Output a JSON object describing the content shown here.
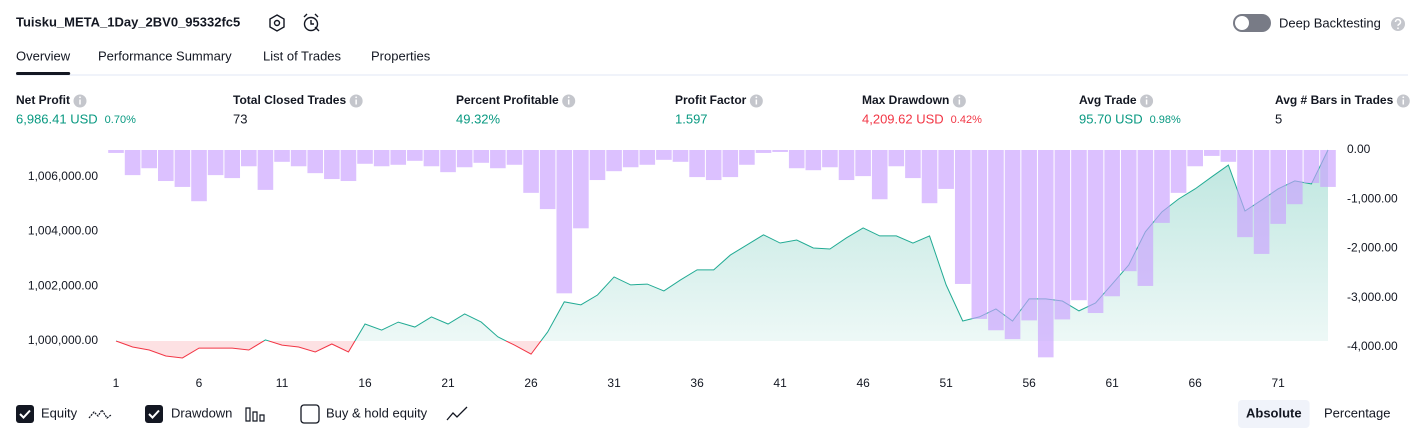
{
  "header": {
    "title": "Tuisku_META_1Day_2BV0_95332fc5",
    "toggle_label": "Deep Backtesting",
    "toggle_on": false
  },
  "tabs": {
    "items": [
      "Overview",
      "Performance Summary",
      "List of Trades",
      "Properties"
    ],
    "active": 0
  },
  "metrics": [
    {
      "label": "Net Profit",
      "value": "6,986.41 USD",
      "percent": "0.70%",
      "color": "#089981"
    },
    {
      "label": "Total Closed Trades",
      "value": "73",
      "color": "#131722"
    },
    {
      "label": "Percent Profitable",
      "value": "49.32%",
      "color": "#089981"
    },
    {
      "label": "Profit Factor",
      "value": "1.597",
      "color": "#089981"
    },
    {
      "label": "Max Drawdown",
      "value": "4,209.62 USD",
      "percent": "0.42%",
      "color": "#f23645"
    },
    {
      "label": "Avg Trade",
      "value": "95.70 USD",
      "percent": "0.98%",
      "color": "#089981"
    },
    {
      "label": "Avg # Bars in Trades",
      "value": "5",
      "color": "#131722"
    }
  ],
  "chart_data": {
    "type": "line",
    "x": [
      1,
      2,
      3,
      4,
      5,
      6,
      7,
      8,
      9,
      10,
      11,
      12,
      13,
      14,
      15,
      16,
      17,
      18,
      19,
      20,
      21,
      22,
      23,
      24,
      25,
      26,
      27,
      28,
      29,
      30,
      31,
      32,
      33,
      34,
      35,
      36,
      37,
      38,
      39,
      40,
      41,
      42,
      43,
      44,
      45,
      46,
      47,
      48,
      49,
      50,
      51,
      52,
      53,
      54,
      55,
      56,
      57,
      58,
      59,
      60,
      61,
      62,
      63,
      64,
      65,
      66,
      67,
      68,
      69,
      70,
      71,
      72,
      73,
      74
    ],
    "xlim": [
      1,
      74
    ],
    "xticks": [
      1,
      6,
      11,
      16,
      21,
      26,
      31,
      36,
      41,
      46,
      51,
      56,
      61,
      66,
      71
    ],
    "ylim": [
      999780,
      1006980
    ],
    "yticks": [
      {
        "value": 1000000,
        "label": "1,000,000.00"
      },
      {
        "value": 1002000,
        "label": "1,002,000.00"
      },
      {
        "value": 1004000,
        "label": "1,004,000.00"
      },
      {
        "value": 1006000,
        "label": "1,006,000.00"
      }
    ],
    "y2lim": [
      -4000,
      0
    ],
    "y2ticks": [
      {
        "value": 0,
        "label": "0.00"
      },
      {
        "value": -1000,
        "label": "-1,000.00"
      },
      {
        "value": -2000,
        "label": "-2,000.00"
      },
      {
        "value": -3000,
        "label": "-3,000.00"
      },
      {
        "value": -4000,
        "label": "-4,000.00"
      }
    ],
    "series": [
      {
        "name": "Equity",
        "type": "line",
        "color": "#22ab94",
        "negative_color": "#f23645",
        "checked": true,
        "values": [
          1000000,
          999780,
          999670,
          999450,
          999380,
          999740,
          999740,
          999740,
          999670,
          1000040,
          999850,
          999780,
          999600,
          999890,
          999600,
          1000620,
          1000400,
          1000690,
          1000510,
          1000880,
          1000620,
          1000990,
          1000690,
          1000150,
          999850,
          999520,
          1000330,
          1001430,
          1001320,
          1001680,
          1002340,
          1002050,
          1002080,
          1001830,
          1002230,
          1002600,
          1002600,
          1003140,
          1003510,
          1003880,
          1003580,
          1003690,
          1003400,
          1003360,
          1003770,
          1004130,
          1003840,
          1003840,
          1003580,
          1003840,
          1002050,
          1000730,
          1000880,
          1001170,
          1000730,
          1001540,
          1001540,
          1001460,
          1001100,
          1001390,
          1002080,
          1002780,
          1003990,
          1004720,
          1005190,
          1005560,
          1006000,
          1006430,
          1004750,
          1005150,
          1005560,
          1005850,
          1005740,
          1006980
        ]
      },
      {
        "name": "Drawdown",
        "type": "bar",
        "axis": "y2",
        "color": "#c9a0ff",
        "checked": true,
        "values": [
          -60,
          -510,
          -370,
          -630,
          -750,
          -1040,
          -510,
          -570,
          -330,
          -810,
          -240,
          -330,
          -470,
          -590,
          -630,
          -280,
          -330,
          -300,
          -220,
          -330,
          -450,
          -350,
          -260,
          -370,
          -300,
          -870,
          -1200,
          -2910,
          -1590,
          -610,
          -430,
          -350,
          -300,
          -200,
          -240,
          -550,
          -610,
          -550,
          -300,
          -60,
          -40,
          -370,
          -410,
          -350,
          -610,
          -530,
          -1000,
          -330,
          -570,
          -1080,
          -790,
          -2720,
          -3430,
          -3660,
          -3840,
          -3460,
          -4210,
          -3440,
          -3050,
          -3310,
          -2970,
          -2460,
          -2760,
          -1480,
          -870,
          -330,
          -120,
          -240,
          -1770,
          -2110,
          -1500,
          -1100,
          -670,
          -750
        ]
      }
    ],
    "legend_extra": {
      "name": "Buy & hold equity",
      "checked": false
    },
    "modes": {
      "items": [
        "Absolute",
        "Percentage"
      ],
      "active": 0
    }
  }
}
